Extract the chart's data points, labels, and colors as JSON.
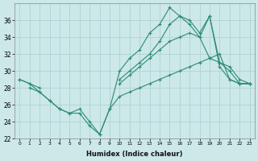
{
  "xlabel": "Humidex (Indice chaleur)",
  "x_values": [
    0,
    1,
    2,
    3,
    4,
    5,
    6,
    7,
    8,
    9,
    10,
    11,
    12,
    13,
    14,
    15,
    16,
    17,
    18,
    19,
    20,
    21,
    22,
    23
  ],
  "series": {
    "jagged": [
      29.0,
      28.5,
      27.5,
      26.5,
      25.5,
      25.0,
      25.0,
      23.5,
      22.5,
      25.5,
      30.0,
      31.5,
      32.5,
      34.5,
      35.5,
      37.5,
      36.5,
      35.5,
      34.0,
      36.5,
      30.5,
      29.0,
      28.5,
      28.5
    ],
    "upper": [
      null,
      null,
      null,
      null,
      null,
      null,
      null,
      null,
      null,
      null,
      29.0,
      30.0,
      31.0,
      32.0,
      33.5,
      35.5,
      36.5,
      36.0,
      34.5,
      36.5,
      31.0,
      30.5,
      29.0,
      28.5
    ],
    "middle": [
      29.0,
      28.5,
      28.0,
      null,
      null,
      null,
      null,
      null,
      null,
      null,
      28.5,
      29.5,
      30.5,
      31.5,
      32.5,
      33.5,
      34.0,
      34.5,
      34.0,
      31.5,
      31.0,
      30.0,
      28.5,
      28.5
    ],
    "lower": [
      null,
      28.0,
      27.5,
      26.5,
      25.5,
      25.0,
      25.5,
      24.0,
      22.5,
      25.5,
      27.0,
      27.5,
      28.0,
      28.5,
      29.0,
      29.5,
      30.0,
      30.5,
      31.0,
      31.5,
      32.0,
      29.0,
      28.5,
      28.5
    ]
  },
  "color": "#2e8b74",
  "bg_color": "#cce8e8",
  "grid_color": "#aacfcf",
  "ylim": [
    22,
    38
  ],
  "yticks": [
    22,
    24,
    26,
    28,
    30,
    32,
    34,
    36
  ],
  "xlim": [
    -0.5,
    23.5
  ],
  "xticks": [
    0,
    1,
    2,
    3,
    4,
    5,
    6,
    7,
    8,
    9,
    10,
    11,
    12,
    13,
    14,
    15,
    16,
    17,
    18,
    19,
    20,
    21,
    22,
    23
  ]
}
